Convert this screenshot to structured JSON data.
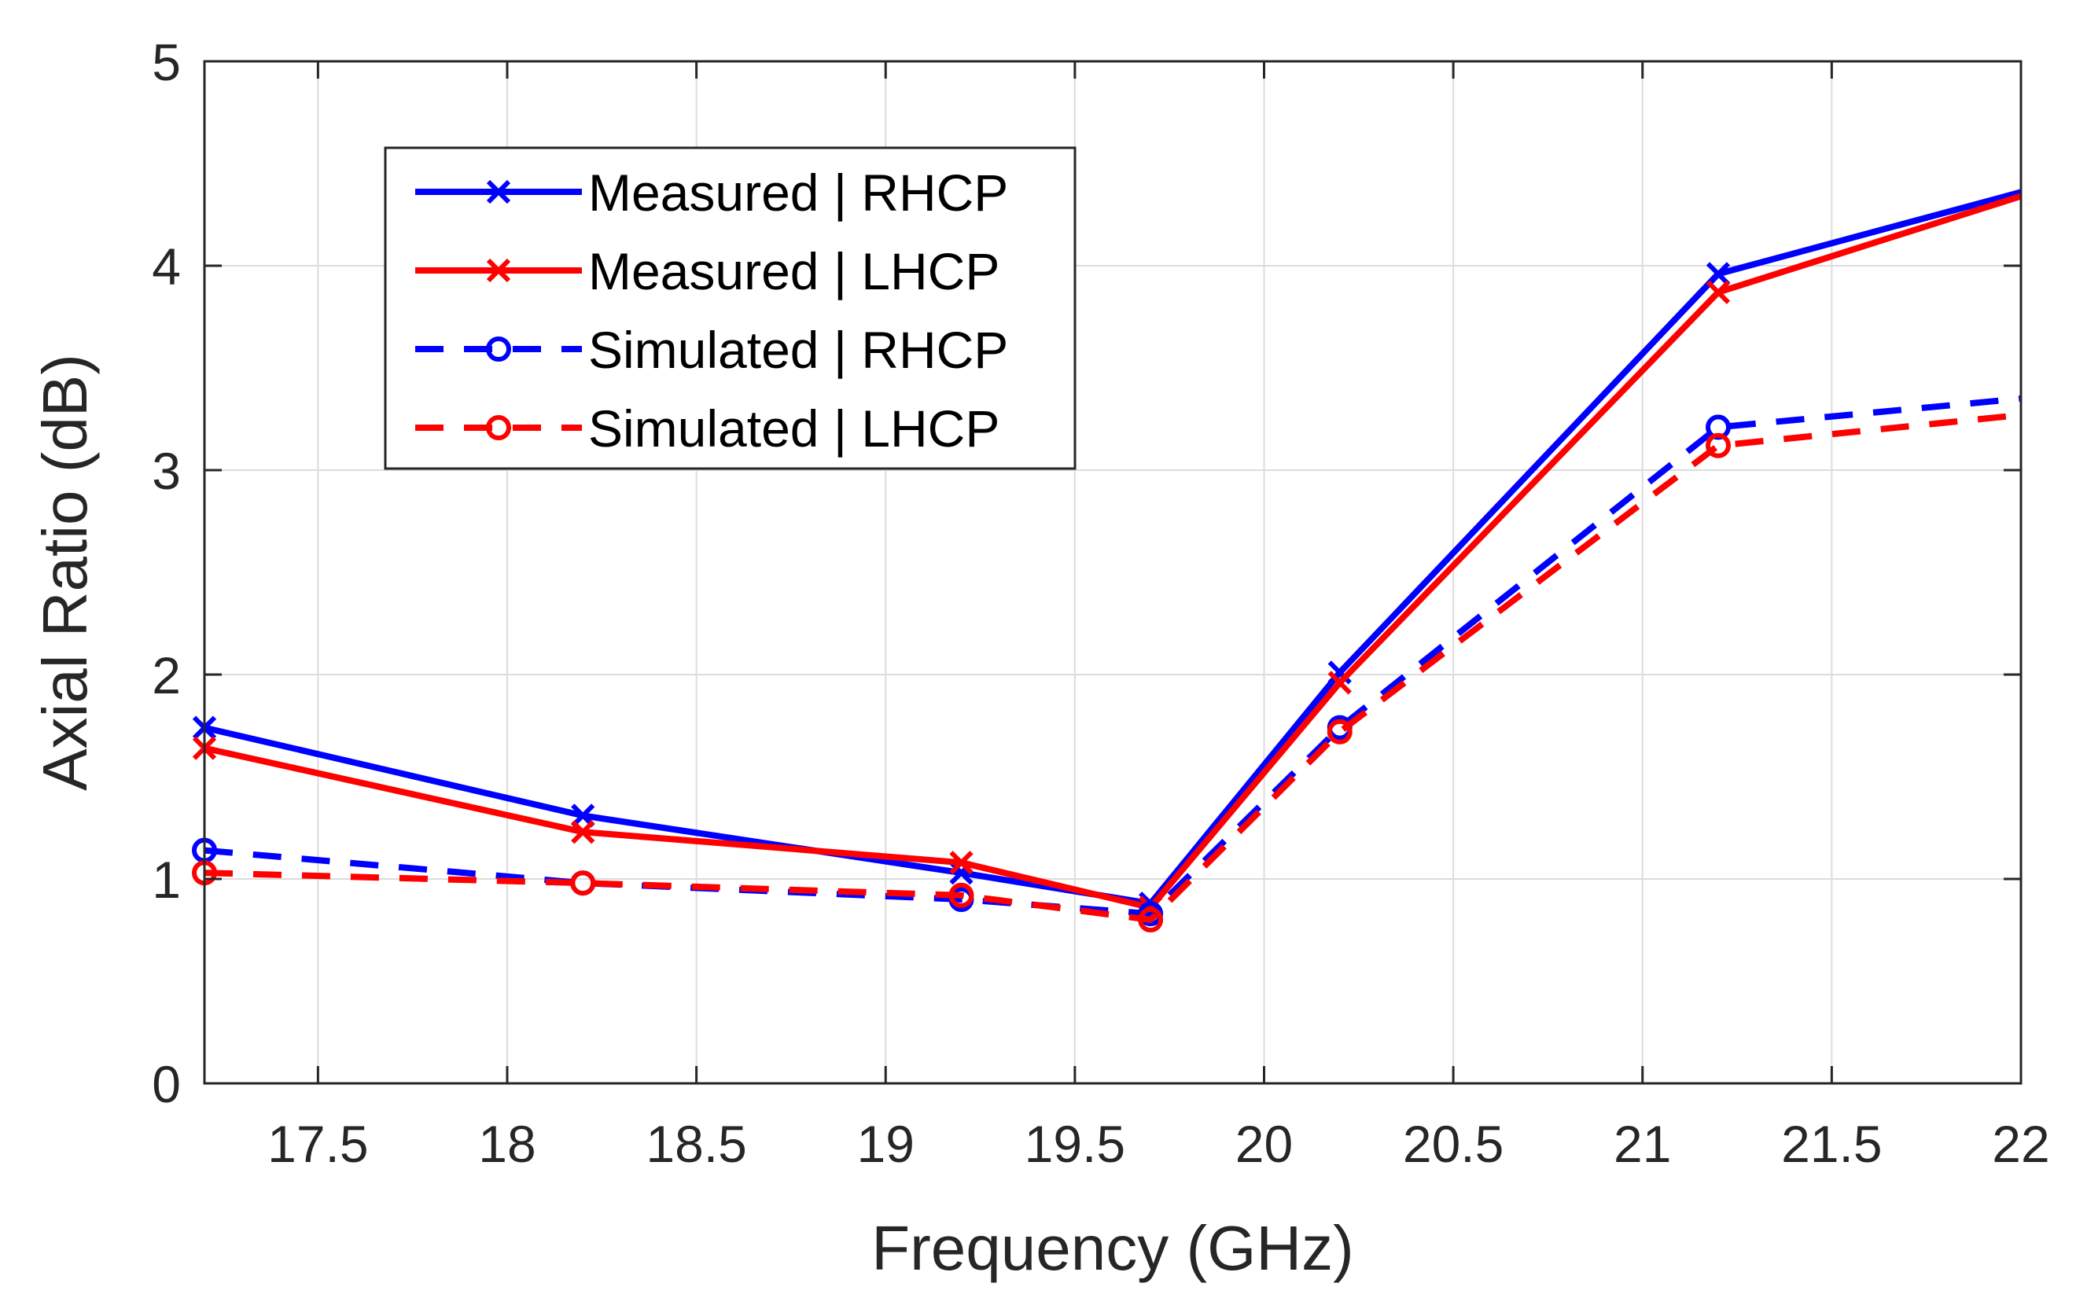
{
  "chart_data": {
    "type": "line",
    "title": "",
    "xlabel": "Frequency (GHz)",
    "ylabel": "Axial Ratio (dB)",
    "xlim": [
      17.2,
      22
    ],
    "ylim": [
      0,
      5
    ],
    "xticks": [
      17.5,
      18,
      18.5,
      19,
      19.5,
      20,
      20.5,
      21,
      21.5,
      22
    ],
    "xtick_labels": [
      "17.5",
      "18",
      "18.5",
      "19",
      "19.5",
      "20",
      "20.5",
      "21",
      "21.5",
      "22"
    ],
    "yticks": [
      0,
      1,
      2,
      3,
      4,
      5
    ],
    "ytick_labels": [
      "0",
      "1",
      "2",
      "3",
      "4",
      "5"
    ],
    "grid": true,
    "legend_position": "top-left",
    "x": [
      17.2,
      18.2,
      19.2,
      19.7,
      20.2,
      21.2,
      22
    ],
    "series": [
      {
        "name": "Measured | RHCP",
        "color": "#0000ff",
        "dash": "solid",
        "marker": "x",
        "values": [
          1.74,
          1.31,
          1.03,
          0.88,
          2.01,
          3.96,
          4.36
        ]
      },
      {
        "name": "Measured | LHCP",
        "color": "#ff0000",
        "dash": "solid",
        "marker": "x",
        "values": [
          1.64,
          1.23,
          1.08,
          0.86,
          1.96,
          3.87,
          4.34
        ]
      },
      {
        "name": "Simulated | RHCP",
        "color": "#0000ff",
        "dash": "dashed",
        "marker": "o",
        "values": [
          1.14,
          0.98,
          0.9,
          0.83,
          1.74,
          3.21,
          3.35
        ]
      },
      {
        "name": "Simulated | LHCP",
        "color": "#ff0000",
        "dash": "dashed",
        "marker": "o",
        "values": [
          1.03,
          0.98,
          0.92,
          0.8,
          1.72,
          3.12,
          3.27
        ]
      }
    ]
  }
}
